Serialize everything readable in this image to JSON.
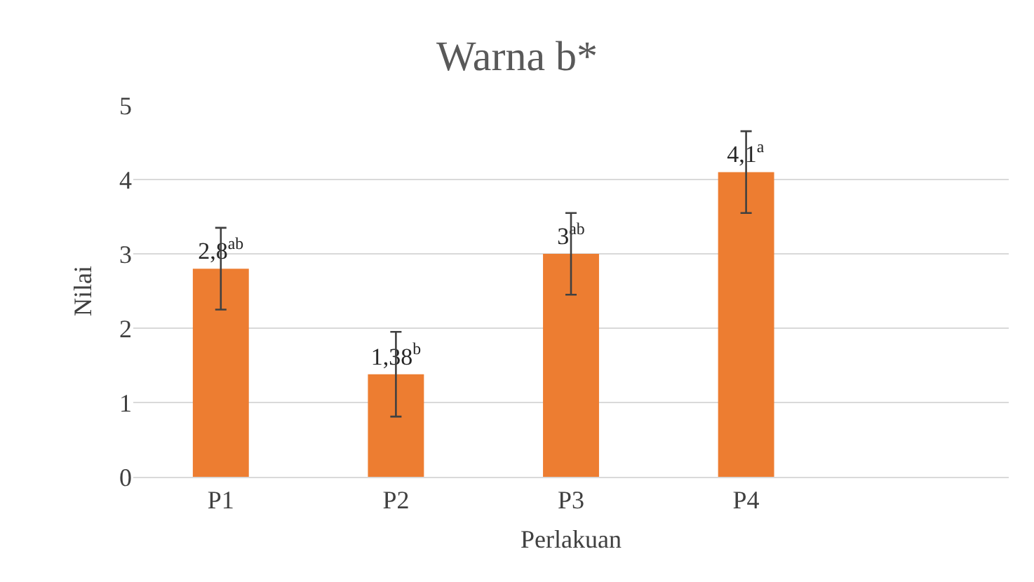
{
  "chart_data": {
    "type": "bar",
    "title": "Warna b*",
    "xlabel": "Perlakuan",
    "ylabel": "Nilai",
    "categories": [
      "P1",
      "P2",
      "P3",
      "P4",
      null
    ],
    "values": [
      2.8,
      1.38,
      3,
      4.1,
      null
    ],
    "errors": [
      0.55,
      0.57,
      0.55,
      0.55,
      null
    ],
    "value_labels": [
      "2,8$^{ab}$",
      "1,38$^{b}$",
      "3$^{ab}$",
      "4,1$^{a}$",
      null
    ],
    "color": "#ed7d31",
    "ylim": [
      0,
      5
    ],
    "yticks": [
      0,
      1,
      2,
      3,
      4,
      5
    ],
    "grid": "y",
    "legend": false
  }
}
